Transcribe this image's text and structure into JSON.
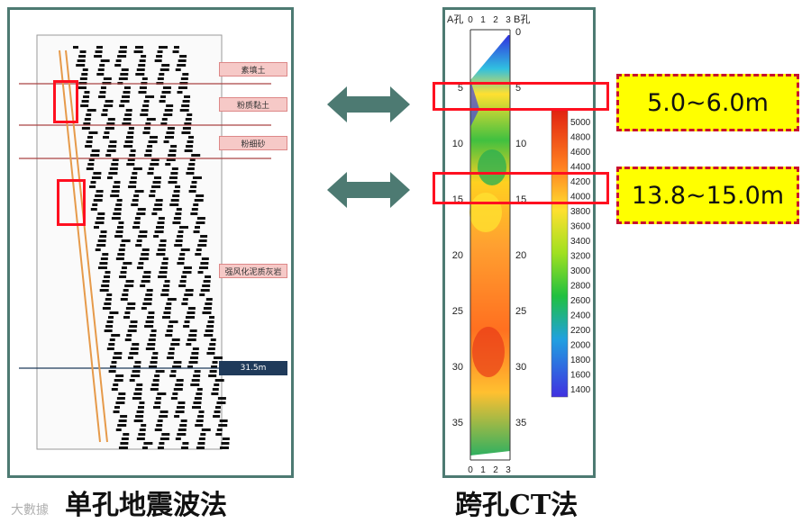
{
  "captions": {
    "left": "单孔地震波法",
    "right": "跨孔CT法"
  },
  "ranges": [
    "5.0~6.0m",
    "13.8~15.0m"
  ],
  "seismic": {
    "layers": [
      "素填土",
      "粉质黏土",
      "粉细砂",
      "强风化泥质灰岩"
    ],
    "depth_marker": "31.5m"
  },
  "ct": {
    "hole_a": "A孔",
    "hole_b": "B孔",
    "x_ticks": [
      "0",
      "1",
      "2",
      "3"
    ],
    "depth_ticks_left": [
      "5",
      "10",
      "15",
      "20",
      "25",
      "30",
      "35"
    ],
    "depth_ticks_right": [
      "0",
      "5",
      "10",
      "15",
      "20",
      "25",
      "30",
      "35"
    ],
    "colorbar_ticks": [
      "5000",
      "4800",
      "4600",
      "4400",
      "4200",
      "4000",
      "3800",
      "3600",
      "3400",
      "3200",
      "3000",
      "2800",
      "2600",
      "2400",
      "2200",
      "2000",
      "1800",
      "1600",
      "1400"
    ]
  },
  "watermark": "大數據",
  "colors": {
    "panel_border": "#4d7a72",
    "arrow": "#4d7a72",
    "highlight": "#ff1020",
    "range_fill": "#ffff00"
  }
}
